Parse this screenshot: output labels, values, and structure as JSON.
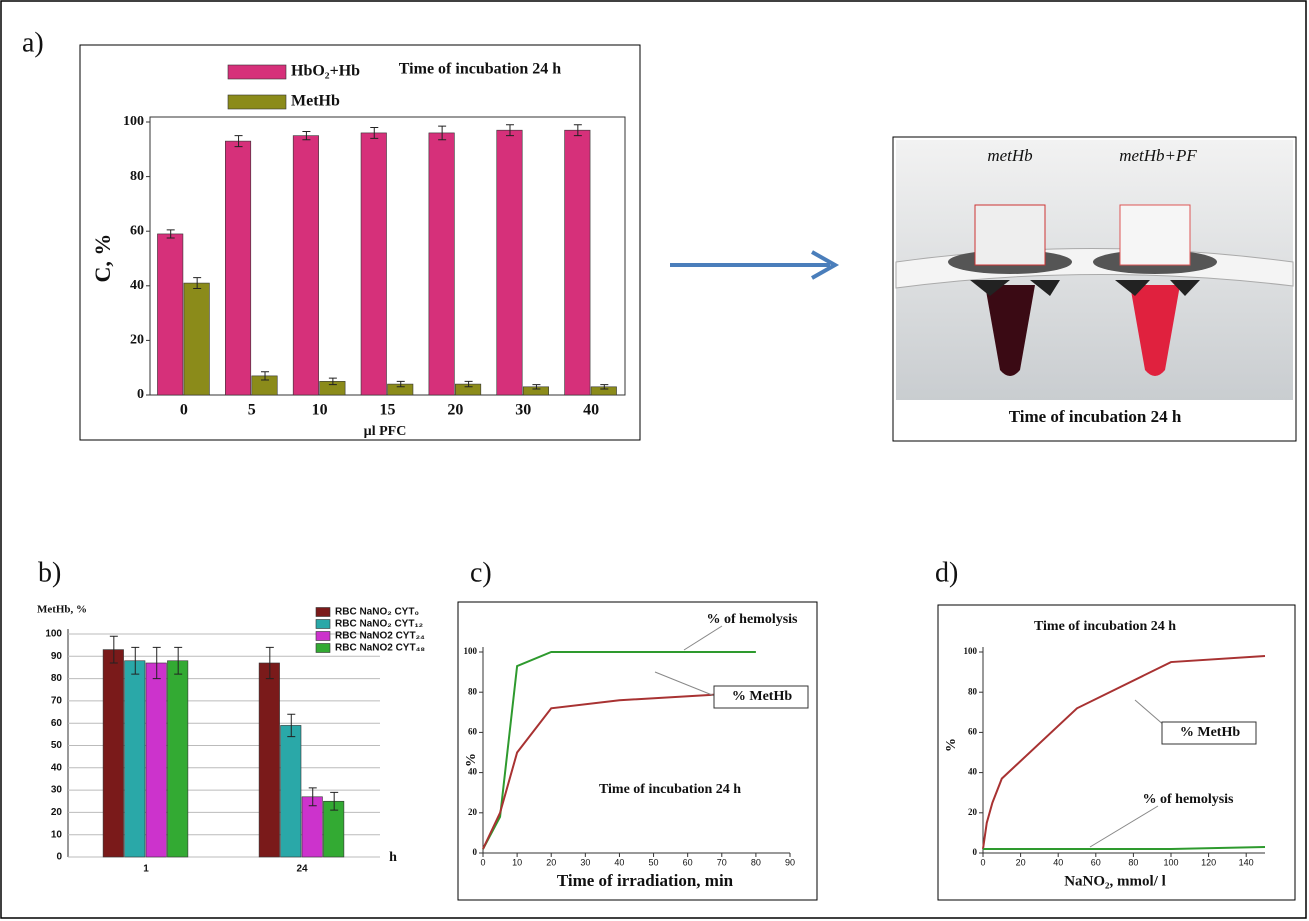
{
  "figure": {
    "panel_labels": [
      "a)",
      "b)",
      "c)",
      "d)"
    ],
    "photo": {
      "labels": [
        "metHb",
        "metHb+PF"
      ],
      "caption": "Time of incubation 24 h"
    }
  },
  "chart_data": [
    {
      "type": "bar",
      "categories": [
        "0",
        "5",
        "10",
        "15",
        "20",
        "30",
        "40"
      ],
      "series": [
        {
          "name": "HbO₂+Hb",
          "color": "#d6307a",
          "values": [
            59,
            93,
            95,
            96,
            96,
            97,
            97
          ],
          "errors": [
            1.5,
            2,
            1.5,
            2,
            2.5,
            2,
            2
          ]
        },
        {
          "name": "MetHb",
          "color": "#8b8b1a",
          "values": [
            41,
            7,
            5,
            4,
            4,
            3,
            3
          ],
          "errors": [
            2,
            1.5,
            1.2,
            1,
            1,
            0.8,
            0.8
          ]
        }
      ],
      "ylim": [
        0,
        100
      ],
      "yticks": [
        0,
        20,
        40,
        60,
        80,
        100
      ],
      "grid": false,
      "y_label": "C, %",
      "x_label": "µl PFC",
      "annotations": [
        "Time of incubation 24 h"
      ]
    },
    {
      "type": "bar",
      "categories": [
        "1",
        "24"
      ],
      "series": [
        {
          "name": "RBC NaNO₂  CYT₀",
          "color": "#7a1a1a",
          "values": [
            93,
            87
          ],
          "errors": [
            6,
            7
          ]
        },
        {
          "name": "RBC NaNO₂  CYT₁₂",
          "color": "#2aa8a8",
          "values": [
            88,
            59
          ],
          "errors": [
            6,
            5
          ]
        },
        {
          "name": "RBC NaNO2  CYT₂₄",
          "color": "#cc33cc",
          "values": [
            87,
            27
          ],
          "errors": [
            7,
            4
          ]
        },
        {
          "name": "RBC NaNO2  CYT₄₈",
          "color": "#33aa33",
          "values": [
            88,
            25
          ],
          "errors": [
            6,
            4
          ]
        }
      ],
      "ylim": [
        0,
        100
      ],
      "yticks": [
        0,
        10,
        20,
        30,
        40,
        50,
        60,
        70,
        80,
        90,
        100
      ],
      "grid": true,
      "y_label": "MetHb, %",
      "x_label": "h"
    },
    {
      "type": "line",
      "series": [
        {
          "name": "% of hemolysis",
          "color": "#2e9a2e",
          "x": [
            0,
            5,
            10,
            20,
            40,
            80
          ],
          "values": [
            2,
            18,
            93,
            100,
            100,
            100
          ]
        },
        {
          "name": "% MetHb",
          "color": "#a83232",
          "x": [
            0,
            5,
            10,
            20,
            40,
            80
          ],
          "values": [
            2,
            20,
            50,
            72,
            76,
            80
          ]
        }
      ],
      "xlim": [
        0,
        90
      ],
      "xticks": [
        0,
        10,
        20,
        30,
        40,
        50,
        60,
        70,
        80,
        90
      ],
      "ylim": [
        0,
        100
      ],
      "yticks": [
        0,
        20,
        40,
        60,
        80,
        100
      ],
      "grid": false,
      "y_label": "%",
      "x_label": "Time of irradiation, min",
      "annotations": [
        "Time of incubation 24 h"
      ]
    },
    {
      "type": "line",
      "series": [
        {
          "name": "% MetHb",
          "color": "#a83232",
          "x": [
            0,
            2,
            5,
            10,
            50,
            100,
            150
          ],
          "values": [
            2,
            15,
            25,
            37,
            72,
            95,
            98
          ]
        },
        {
          "name": "% of hemolysis",
          "color": "#2e9a2e",
          "x": [
            0,
            5,
            10,
            50,
            100,
            150
          ],
          "values": [
            2,
            2,
            2,
            2,
            2,
            3
          ]
        }
      ],
      "xlim": [
        0,
        150
      ],
      "xticks": [
        0,
        20,
        40,
        60,
        80,
        100,
        120,
        140
      ],
      "ylim": [
        0,
        100
      ],
      "yticks": [
        0,
        20,
        40,
        60,
        80,
        100
      ],
      "grid": false,
      "y_label": "%",
      "x_label": "NaNO₂, mmol/ l",
      "annotations": [
        "Time of incubation 24 h"
      ]
    }
  ]
}
